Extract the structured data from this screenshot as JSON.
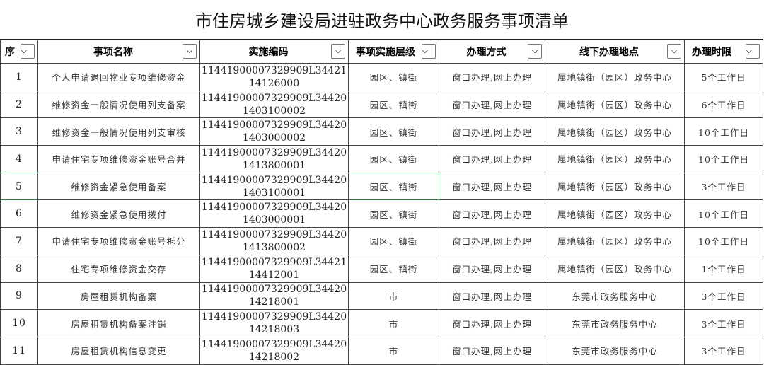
{
  "title": "市住房城乡建设局进驻政务中心政务服务事项清单",
  "headers": [
    "序",
    "事项名称",
    "实施编码",
    "事项实施层级",
    "办理方式",
    "线下办理地点",
    "办理时限"
  ],
  "rows": [
    [
      "1",
      "个人申请退回物业专项维修资金",
      "11441900007329909L3442114126000",
      "园区、镇街",
      "窗口办理,网上办理",
      "属地镇街（园区）政务中心",
      "5个工作日"
    ],
    [
      "2",
      "维修资金一般情况使用列支备案",
      "11441900007329909L344201403100002",
      "园区、镇街",
      "窗口办理,网上办理",
      "属地镇街（园区）政务中心",
      "6个工作日"
    ],
    [
      "3",
      "维修资金一般情况使用列支审核",
      "11441900007329909L344201403000002",
      "园区、镇街",
      "窗口办理,网上办理",
      "属地镇街（园区）政务中心",
      "10个工作日"
    ],
    [
      "4",
      "申请住宅专项维修资金账号合并",
      "11441900007329909L344201413800001",
      "园区、镇街",
      "窗口办理,网上办理",
      "属地镇街（园区）政务中心",
      "10个工作日"
    ],
    [
      "5",
      "维修资金紧急使用备案",
      "11441900007329909L344201403100001",
      "园区、镇街",
      "窗口办理,网上办理",
      "属地镇街（园区）政务中心",
      "3个工作日"
    ],
    [
      "6",
      "维修资金紧急使用拨付",
      "11441900007329909L344201403000001",
      "园区、镇街",
      "窗口办理,网上办理",
      "属地镇街（园区）政务中心",
      "10个工作日"
    ],
    [
      "7",
      "申请住宅专项维修资金账号拆分",
      "11441900007329909L344201413800002",
      "园区、镇街",
      "窗口办理,网上办理",
      "属地镇街（园区）政务中心",
      "10个工作日"
    ],
    [
      "8",
      "住宅专项维修资金交存",
      "11441900007329909L3442114412001",
      "园区、镇街",
      "窗口办理,网上办理",
      "属地镇街（园区）政务中心",
      "1个工作日"
    ],
    [
      "9",
      "房屋租赁机构备案",
      "11441900007329909L3442014218001",
      "市",
      "窗口办理,网上办理",
      "东莞市政务服务中心",
      "3个工作日"
    ],
    [
      "10",
      "房屋租赁机构备案注销",
      "11441900007329909L3442014218003",
      "市",
      "窗口办理,网上办理",
      "东莞市政务服务中心",
      "3个工作日"
    ],
    [
      "11",
      "房屋租赁机构信息变更",
      "11441900007329909L3442014218002",
      "市",
      "窗口办理,网上办理",
      "东莞市政务服务中心",
      "3个工作日"
    ]
  ],
  "selected_row": "5",
  "dropdown_icon": "chevron-down-icon"
}
